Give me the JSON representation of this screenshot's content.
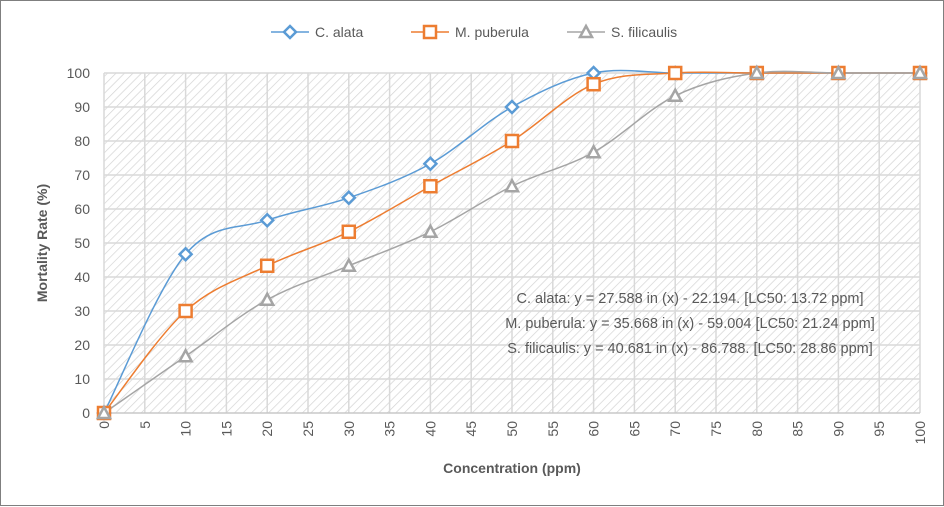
{
  "chart_data": {
    "type": "line",
    "xlabel": "Concentration (ppm)",
    "ylabel": "Mortality Rate (%)",
    "xlim": [
      0,
      100
    ],
    "ylim": [
      0,
      100
    ],
    "x_ticks": [
      0,
      5,
      10,
      15,
      20,
      25,
      30,
      35,
      40,
      45,
      50,
      55,
      60,
      65,
      70,
      75,
      80,
      85,
      90,
      95,
      100
    ],
    "y_ticks": [
      0,
      10,
      20,
      30,
      40,
      50,
      60,
      70,
      80,
      90,
      100
    ],
    "grid": true,
    "legend_position": "top",
    "smooth": true,
    "x": [
      0,
      10,
      20,
      30,
      40,
      50,
      60,
      70,
      80,
      90,
      100
    ],
    "series": [
      {
        "name": "C. alata",
        "color": "#5b9bd5",
        "marker": "diamond",
        "values": [
          0,
          46.7,
          56.7,
          63.3,
          73.3,
          90,
          100,
          100,
          100,
          100,
          100
        ]
      },
      {
        "name": "M. puberula",
        "color": "#ed7d31",
        "marker": "square",
        "values": [
          0,
          30,
          43.3,
          53.3,
          66.7,
          80,
          96.7,
          100,
          100,
          100,
          100
        ]
      },
      {
        "name": "S. filicaulis",
        "color": "#a5a5a5",
        "marker": "triangle",
        "values": [
          0,
          16.7,
          33.3,
          43.3,
          53.3,
          66.7,
          76.7,
          93.3,
          100,
          100,
          100
        ]
      }
    ],
    "annotations": [
      "C. alata: y = 27.588 in (x) - 22.194. [LC50: 13.72 ppm]",
      "M. puberula: y = 35.668 in (x) - 59.004 [LC50: 21.24 ppm]",
      "S. filicaulis: y = 40.681 in (x) - 86.788. [LC50: 28.86 ppm]"
    ]
  }
}
